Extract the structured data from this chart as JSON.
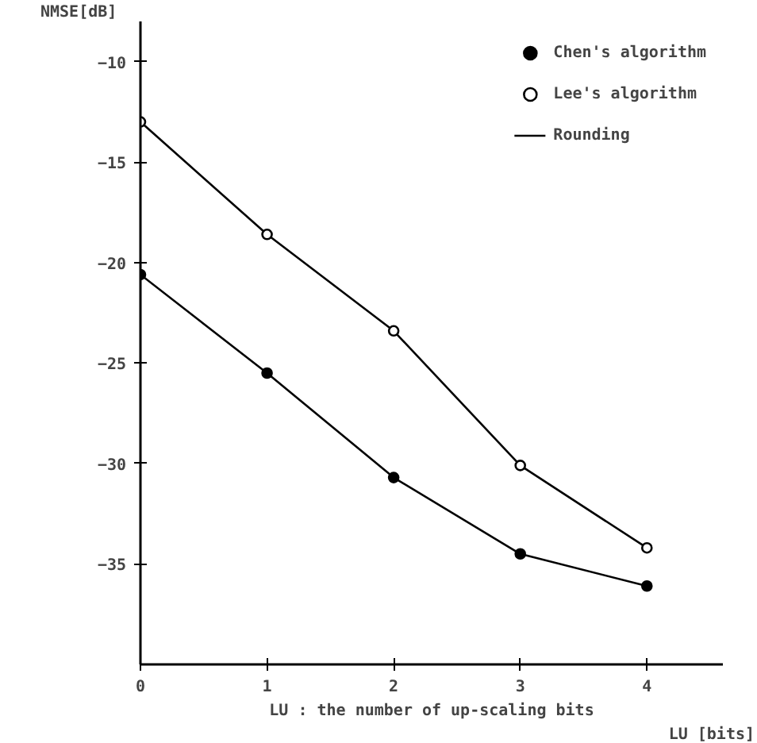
{
  "chart_data": {
    "type": "line",
    "ylabel": "NMSE[dB]",
    "xlabel": "LU [bits]",
    "x": [
      0,
      1,
      2,
      3,
      4
    ],
    "series": [
      {
        "name": "Chen's algorithm",
        "color": "#000000",
        "marker": "circle",
        "values": [
          -20.6,
          -25.5,
          -30.7,
          -34.5,
          -36.1
        ]
      },
      {
        "name": "Lee's algorithm",
        "color": "#000000",
        "marker": "circle",
        "values": [
          -13.0,
          -18.6,
          -23.4,
          -30.1,
          -34.2
        ]
      }
    ],
    "annotations": [
      "Rounding",
      "LU : the number of up-scaling bits"
    ],
    "xlim": [
      0,
      4.6
    ],
    "ylim": [
      -40,
      -8
    ],
    "xticks": [
      0,
      1,
      2,
      3,
      4
    ],
    "yticks": [
      -10,
      -15,
      -20,
      -25,
      -30,
      -35
    ],
    "grid": false,
    "legend": "top right",
    "line_style": "solid"
  }
}
